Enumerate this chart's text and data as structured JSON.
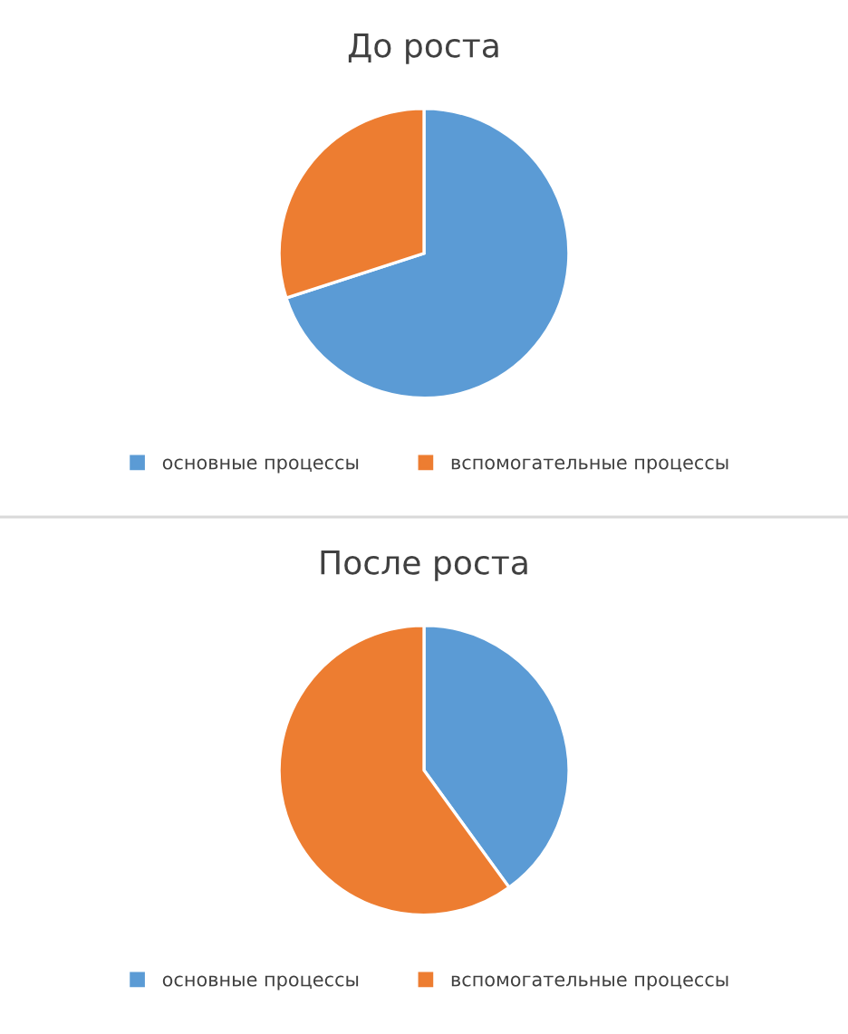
{
  "chart_data": [
    {
      "type": "pie",
      "title": "До роста",
      "categories": [
        "основные процессы",
        "вспомогательные процессы"
      ],
      "values": [
        70,
        30
      ],
      "colors": [
        "#5b9bd5",
        "#ed7d31"
      ],
      "legend": "bottom"
    },
    {
      "type": "pie",
      "title": "После роста",
      "categories": [
        "основные процессы",
        "вспомогательные процессы"
      ],
      "values": [
        40,
        60
      ],
      "colors": [
        "#5b9bd5",
        "#ed7d31"
      ],
      "legend": "bottom"
    }
  ]
}
